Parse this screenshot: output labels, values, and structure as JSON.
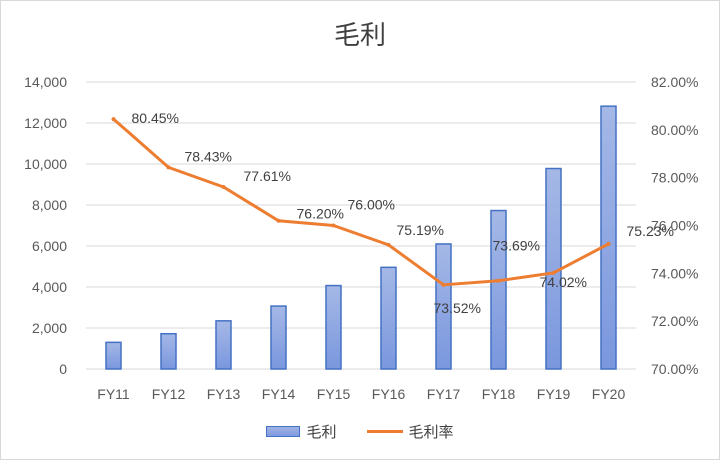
{
  "chart_data": {
    "type": "bar+line",
    "title": "毛利",
    "categories": [
      "FY11",
      "FY12",
      "FY13",
      "FY14",
      "FY15",
      "FY16",
      "FY17",
      "FY18",
      "FY19",
      "FY20"
    ],
    "series": [
      {
        "name": "毛利",
        "type": "bar",
        "axis": "left",
        "values": [
          1300,
          1720,
          2350,
          3070,
          4070,
          4960,
          6100,
          7730,
          9780,
          12820
        ]
      },
      {
        "name": "毛利率",
        "type": "line",
        "axis": "right",
        "values": [
          80.45,
          78.43,
          77.61,
          76.2,
          76.0,
          75.19,
          73.52,
          73.69,
          74.02,
          75.23
        ],
        "labels": [
          "80.45%",
          "78.43%",
          "77.61%",
          "76.20%",
          "76.00%",
          "75.19%",
          "73.52%",
          "73.69%",
          "74.02%",
          "75.23%"
        ]
      }
    ],
    "y_left": {
      "min": 0,
      "max": 14000,
      "ticks": [
        "0",
        "2,000",
        "4,000",
        "6,000",
        "8,000",
        "10,000",
        "12,000",
        "14,000"
      ]
    },
    "y_right": {
      "min": 70,
      "max": 82,
      "ticks": [
        "70.00%",
        "72.00%",
        "74.00%",
        "76.00%",
        "78.00%",
        "80.00%",
        "82.00%"
      ]
    },
    "grid": true,
    "legend_position": "bottom",
    "colors": {
      "bar_stroke": "#4472c4",
      "bar_fill_top": "#a5b8e6",
      "bar_fill_bottom": "#7a97de",
      "line": "#ed7d31",
      "grid": "#d9d9d9"
    }
  }
}
